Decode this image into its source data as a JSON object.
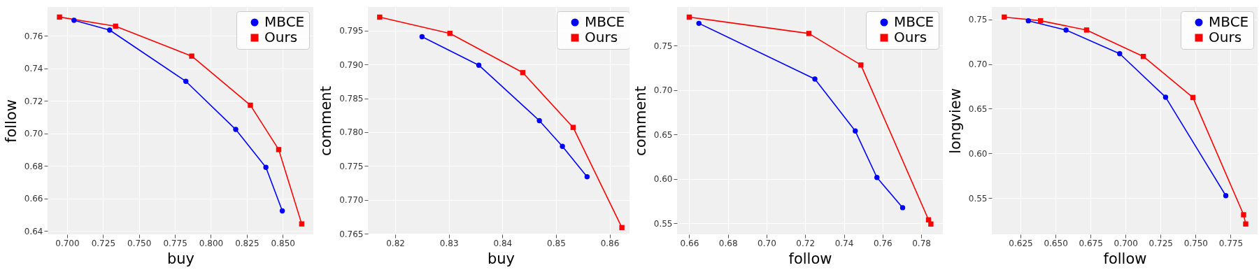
{
  "chart_data": [
    {
      "type": "line",
      "xlabel": "buy",
      "ylabel": "follow",
      "xlim": [
        0.6864,
        0.8713
      ],
      "ylim": [
        0.6379,
        0.7777
      ],
      "xticks": [
        {
          "value": 0.7,
          "label": "0.700"
        },
        {
          "value": 0.725,
          "label": "0.725"
        },
        {
          "value": 0.75,
          "label": "0.750"
        },
        {
          "value": 0.775,
          "label": "0.775"
        },
        {
          "value": 0.8,
          "label": "0.800"
        },
        {
          "value": 0.825,
          "label": "0.825"
        },
        {
          "value": 0.85,
          "label": "0.850"
        }
      ],
      "yticks": [
        0.64,
        0.66,
        0.68,
        {
          "value": 0.7,
          "label": "0.70"
        },
        0.72,
        0.74,
        0.76
      ],
      "grid": true,
      "legend": "top right",
      "series": [
        {
          "name": "MBCE",
          "color": "#0000ff",
          "marker": "circle",
          "x": [
            0.7048,
            0.7296,
            0.7826,
            0.8173,
            0.8383,
            0.8497
          ],
          "values": [
            0.7695,
            0.7635,
            0.732,
            0.7024,
            0.6791,
            0.6523
          ]
        },
        {
          "name": "Ours",
          "color": "#ff0000",
          "marker": "square",
          "x": [
            0.6947,
            0.7337,
            0.7867,
            0.8275,
            0.8472,
            0.8632
          ],
          "values": [
            0.7715,
            0.7659,
            0.7475,
            0.7173,
            0.69,
            0.6443
          ]
        }
      ]
    },
    {
      "type": "line",
      "xlabel": "buy",
      "ylabel": "comment",
      "xlim": [
        0.8149,
        0.8645
      ],
      "ylim": [
        0.7649,
        0.7985
      ],
      "xticks": [
        0.82,
        0.83,
        0.84,
        0.85,
        0.86
      ],
      "yticks": [
        0.765,
        {
          "value": 0.77,
          "label": "0.770"
        },
        0.775,
        {
          "value": 0.78,
          "label": "0.780"
        },
        0.785,
        {
          "value": 0.79,
          "label": "0.790"
        },
        0.795
      ],
      "grid": true,
      "legend": "top right",
      "series": [
        {
          "name": "MBCE",
          "color": "#0000ff",
          "marker": "circle",
          "x": [
            0.825,
            0.8356,
            0.8469,
            0.8512,
            0.8558
          ],
          "values": [
            0.7941,
            0.7899,
            0.7817,
            0.7779,
            0.7734
          ]
        },
        {
          "name": "Ours",
          "color": "#ff0000",
          "marker": "square",
          "x": [
            0.8171,
            0.8302,
            0.8438,
            0.8532,
            0.8623
          ],
          "values": [
            0.797,
            0.7946,
            0.7888,
            0.7807,
            0.7659
          ]
        }
      ]
    },
    {
      "type": "line",
      "xlabel": "follow",
      "ylabel": "comment",
      "xlim": [
        0.6537,
        0.7912
      ],
      "ylim": [
        0.5376,
        0.7935
      ],
      "xticks": [
        0.66,
        0.68,
        {
          "value": 0.7,
          "label": "0.70"
        },
        0.72,
        0.74,
        0.76,
        0.78
      ],
      "yticks": [
        0.55,
        {
          "value": 0.6,
          "label": "0.60"
        },
        0.65,
        {
          "value": 0.7,
          "label": "0.70"
        },
        0.75
      ],
      "grid": true,
      "legend": "top right",
      "series": [
        {
          "name": "MBCE",
          "color": "#0000ff",
          "marker": "circle",
          "x": [
            0.665,
            0.725,
            0.7459,
            0.7571,
            0.7704
          ],
          "values": [
            0.7751,
            0.7124,
            0.6539,
            0.6016,
            0.5676
          ]
        },
        {
          "name": "Ours",
          "color": "#ff0000",
          "marker": "square",
          "x": [
            0.66,
            0.7219,
            0.7488,
            0.7838,
            0.785
          ],
          "values": [
            0.7821,
            0.7637,
            0.7282,
            0.5539,
            0.5492
          ]
        }
      ]
    },
    {
      "type": "line",
      "xlabel": "follow",
      "ylabel": "longview",
      "xlim": [
        0.6045,
        0.7943
      ],
      "ylim": [
        0.5093,
        0.7639
      ],
      "xticks": [
        0.625,
        {
          "value": 0.65,
          "label": "0.650"
        },
        0.675,
        {
          "value": 0.7,
          "label": "0.700"
        },
        0.725,
        {
          "value": 0.75,
          "label": "0.750"
        },
        0.775
      ],
      "yticks": [
        0.55,
        {
          "value": 0.6,
          "label": "0.60"
        },
        0.65,
        {
          "value": 0.7,
          "label": "0.70"
        },
        0.75
      ],
      "grid": true,
      "legend": "top right",
      "series": [
        {
          "name": "MBCE",
          "color": "#0000ff",
          "marker": "circle",
          "x": [
            0.6306,
            0.6575,
            0.6958,
            0.7286,
            0.7716
          ],
          "values": [
            0.7485,
            0.7381,
            0.7116,
            0.6629,
            0.5526
          ]
        },
        {
          "name": "Ours",
          "color": "#ff0000",
          "marker": "square",
          "x": [
            0.6134,
            0.6393,
            0.6722,
            0.7127,
            0.7481,
            0.7843,
            0.7858
          ],
          "values": [
            0.7526,
            0.7485,
            0.7381,
            0.7085,
            0.6626,
            0.5312,
            0.5209
          ]
        }
      ]
    }
  ]
}
